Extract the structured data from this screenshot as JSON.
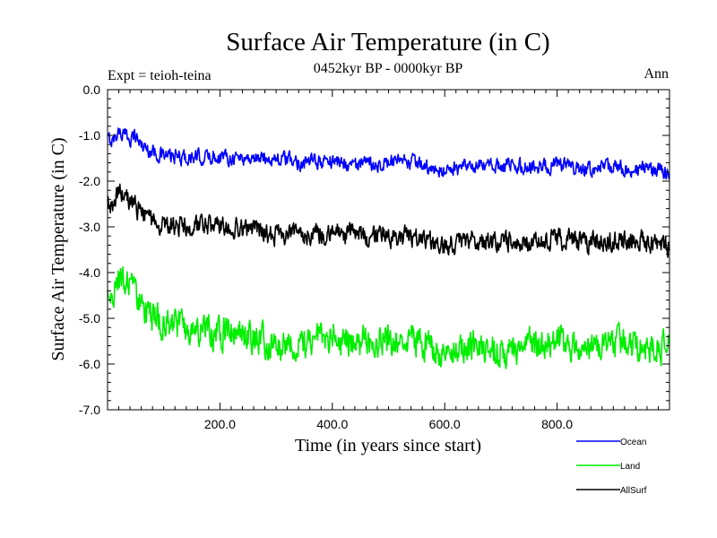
{
  "chart_data": {
    "type": "line",
    "title": "Surface Air Temperature (in C)",
    "subtitle": "0452kyr BP - 0000kyr BP",
    "left_label": "Expt = teioh-teina",
    "right_label": "Ann",
    "xlabel": "Time (in years since start)",
    "ylabel": "Surface Air Temperature (in C)",
    "xlim": [
      0,
      1000
    ],
    "ylim": [
      -7.0,
      0.0
    ],
    "x_ticks": [
      200,
      400,
      600,
      800
    ],
    "x_tick_labels": [
      "200.0",
      "400.0",
      "600.0",
      "800.0"
    ],
    "y_ticks": [
      0,
      -1,
      -2,
      -3,
      -4,
      -5,
      -6,
      -7
    ],
    "y_tick_labels": [
      "0.0",
      "-1.0",
      "-2.0",
      "-3.0",
      "-4.0",
      "-5.0",
      "-6.0",
      "-7.0"
    ],
    "legend_position": "bottom-right-outside",
    "series": [
      {
        "name": "Ocean",
        "color": "#0000ff",
        "x": [
          0,
          10,
          20,
          30,
          40,
          50,
          60,
          70,
          80,
          100,
          150,
          200,
          250,
          300,
          350,
          400,
          450,
          500,
          550,
          580,
          600,
          650,
          700,
          750,
          800,
          850,
          900,
          950,
          1000
        ],
        "values": [
          -1.1,
          -1.1,
          -0.9,
          -1.0,
          -1.05,
          -1.0,
          -1.2,
          -1.3,
          -1.35,
          -1.45,
          -1.5,
          -1.45,
          -1.5,
          -1.5,
          -1.6,
          -1.55,
          -1.65,
          -1.6,
          -1.6,
          -1.8,
          -1.75,
          -1.7,
          -1.65,
          -1.7,
          -1.65,
          -1.75,
          -1.7,
          -1.75,
          -1.8
        ]
      },
      {
        "name": "Land",
        "color": "#00ee00",
        "x": [
          0,
          10,
          20,
          30,
          40,
          50,
          60,
          70,
          80,
          100,
          150,
          200,
          250,
          300,
          350,
          400,
          450,
          500,
          550,
          580,
          600,
          650,
          700,
          750,
          800,
          850,
          900,
          950,
          1000
        ],
        "values": [
          -4.6,
          -4.4,
          -4.1,
          -4.2,
          -4.35,
          -4.45,
          -4.7,
          -4.9,
          -5.0,
          -5.1,
          -5.25,
          -5.3,
          -5.35,
          -5.6,
          -5.5,
          -5.4,
          -5.5,
          -5.45,
          -5.5,
          -5.65,
          -5.7,
          -5.6,
          -5.7,
          -5.6,
          -5.55,
          -5.65,
          -5.55,
          -5.6,
          -5.65
        ]
      },
      {
        "name": "AllSurf",
        "color": "#000000",
        "x": [
          0,
          10,
          20,
          30,
          40,
          50,
          60,
          70,
          80,
          100,
          150,
          200,
          250,
          300,
          350,
          400,
          450,
          500,
          550,
          580,
          600,
          650,
          700,
          750,
          800,
          850,
          900,
          950,
          1000
        ],
        "values": [
          -2.6,
          -2.5,
          -2.25,
          -2.3,
          -2.45,
          -2.55,
          -2.7,
          -2.85,
          -2.9,
          -2.95,
          -3.0,
          -3.0,
          -3.05,
          -3.2,
          -3.15,
          -3.1,
          -3.2,
          -3.2,
          -3.2,
          -3.35,
          -3.4,
          -3.3,
          -3.35,
          -3.3,
          -3.25,
          -3.35,
          -3.3,
          -3.3,
          -3.4
        ]
      }
    ]
  }
}
